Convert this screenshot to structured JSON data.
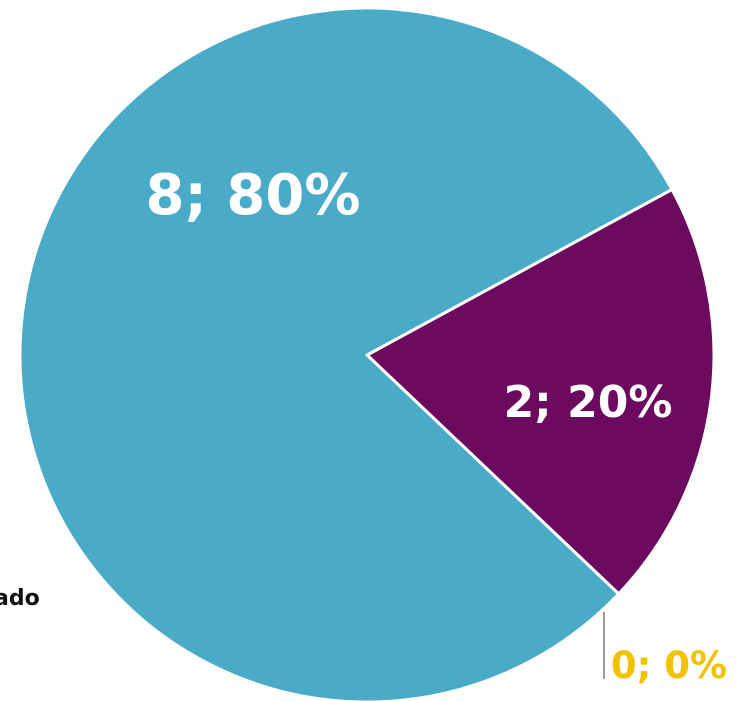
{
  "chart_data": {
    "type": "pie",
    "title": "",
    "slices": [
      {
        "value": 2,
        "percent": 20,
        "label": "2; 20%",
        "color": "#6B0A5F",
        "label_color": "#FFFFFF"
      },
      {
        "value": 8,
        "percent": 80,
        "label": "8; 80%",
        "color": "#4AABC8",
        "label_color": "#FFFFFF"
      },
      {
        "value": 0,
        "percent": 0,
        "label": "0; 0%",
        "color": "#F2C200",
        "label_color": "#F2C200"
      }
    ],
    "legend_fragment": "ado"
  }
}
